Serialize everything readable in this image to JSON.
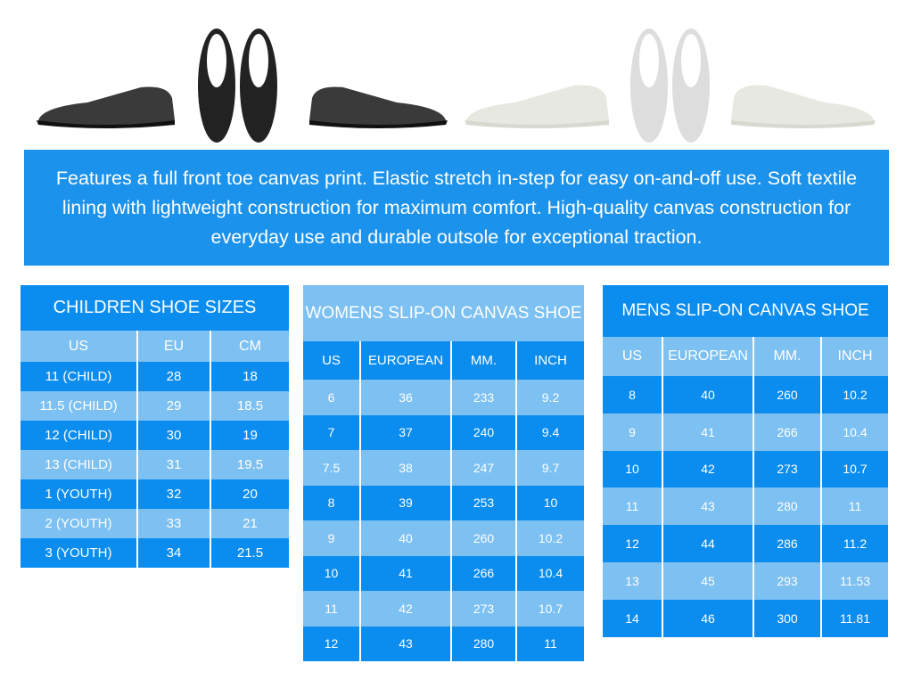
{
  "product_images": [
    "black-slip-on-side-left",
    "black-slip-on-top-pair",
    "black-slip-on-side-right",
    "white-slip-on-side-left",
    "white-slip-on-top-pair",
    "white-slip-on-side-right"
  ],
  "colors": {
    "dark_blue": "#0b8def",
    "light_blue": "#7dc0f2",
    "banner": "#1b92ec"
  },
  "banner": {
    "text": "Features a full front toe canvas print. Elastic stretch in-step for easy on-and-off use. Soft textile lining with lightweight construction for maximum comfort. High-quality canvas construction for everyday use and durable outsole for exceptional traction."
  },
  "children": {
    "title": "CHILDREN SHOE SIZES",
    "headers": [
      "US",
      "EU",
      "CM"
    ],
    "rows": [
      [
        "11 (CHILD)",
        "28",
        "18"
      ],
      [
        "11.5 (CHILD)",
        "29",
        "18.5"
      ],
      [
        "12 (CHILD)",
        "30",
        "19"
      ],
      [
        "13 (CHILD)",
        "31",
        "19.5"
      ],
      [
        "1 (YOUTH)",
        "32",
        "20"
      ],
      [
        "2 (YOUTH)",
        "33",
        "21"
      ],
      [
        "3 (YOUTH)",
        "34",
        "21.5"
      ]
    ]
  },
  "womens": {
    "title": "WOMENS  SLIP-ON CANVAS SHOE",
    "headers": [
      "US",
      "EUROPEAN",
      "MM.",
      "INCH"
    ],
    "rows": [
      [
        "6",
        "36",
        "233",
        "9.2"
      ],
      [
        "7",
        "37",
        "240",
        "9.4"
      ],
      [
        "7.5",
        "38",
        "247",
        "9.7"
      ],
      [
        "8",
        "39",
        "253",
        "10"
      ],
      [
        "9",
        "40",
        "260",
        "10.2"
      ],
      [
        "10",
        "41",
        "266",
        "10.4"
      ],
      [
        "11",
        "42",
        "273",
        "10.7"
      ],
      [
        "12",
        "43",
        "280",
        "11"
      ]
    ]
  },
  "mens": {
    "title": "MENS SLIP-ON CANVAS SHOE",
    "headers": [
      "US",
      "EUROPEAN",
      "MM.",
      "INCH"
    ],
    "rows": [
      [
        "8",
        "40",
        "260",
        "10.2"
      ],
      [
        "9",
        "41",
        "266",
        "10.4"
      ],
      [
        "10",
        "42",
        "273",
        "10.7"
      ],
      [
        "11",
        "43",
        "280",
        "11"
      ],
      [
        "12",
        "44",
        "286",
        "11.2"
      ],
      [
        "13",
        "45",
        "293",
        "11.53"
      ],
      [
        "14",
        "46",
        "300",
        "11.81"
      ]
    ]
  }
}
